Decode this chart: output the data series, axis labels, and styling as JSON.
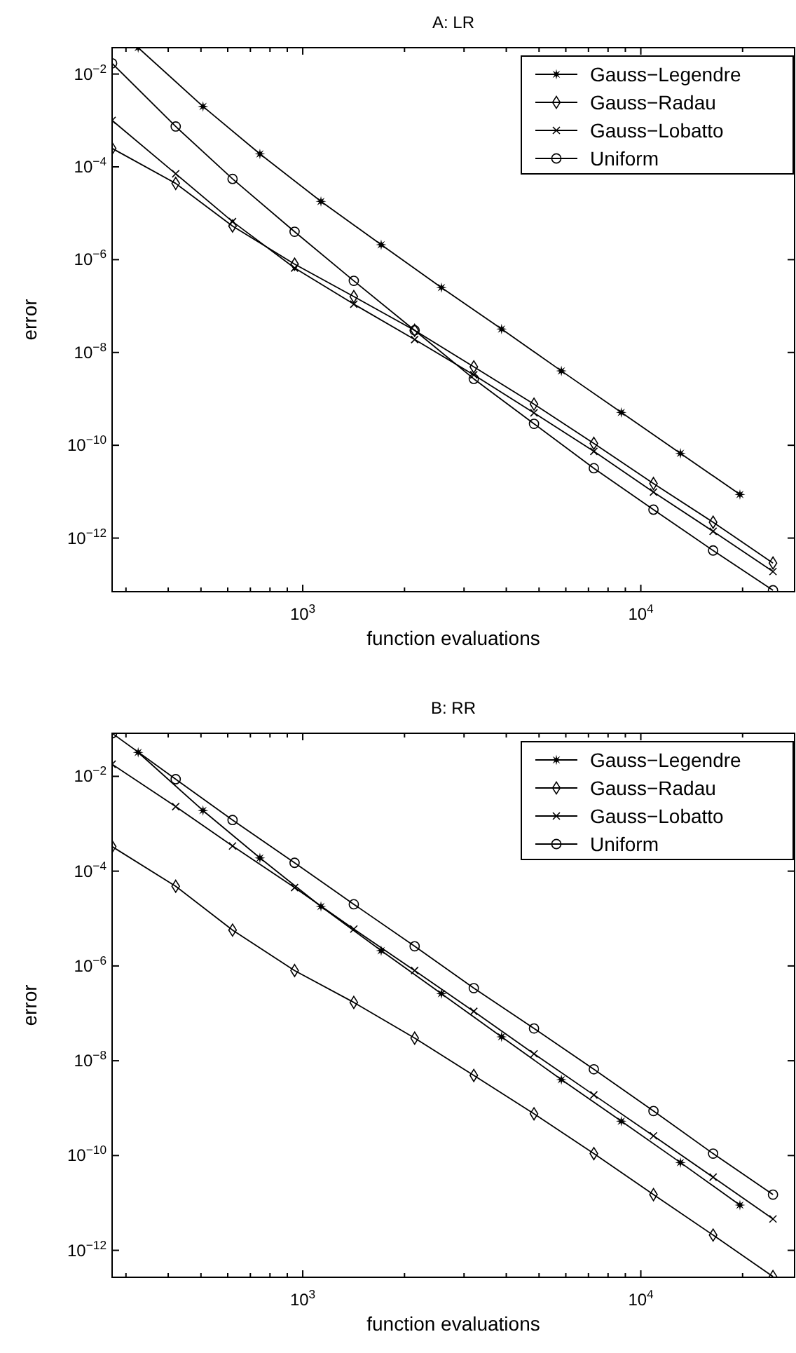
{
  "chart_data": [
    {
      "type": "line",
      "title": "A: LR",
      "xlabel": "function evaluations",
      "ylabel": "error",
      "log": "xy",
      "grid": false,
      "legend": "top right",
      "xlim": [
        273,
        28500
      ],
      "ylim": [
        7e-14,
        0.037
      ],
      "xticks": [
        {
          "value": 300,
          "label": null
        },
        {
          "value": 400,
          "label": null
        },
        {
          "value": 500,
          "label": null
        },
        {
          "value": 600,
          "label": null
        },
        {
          "value": 700,
          "label": null
        },
        {
          "value": 800,
          "label": null
        },
        {
          "value": 900,
          "label": null
        },
        {
          "value": 1000,
          "label": "10$^{3}$"
        },
        {
          "value": 2000,
          "label": null
        },
        {
          "value": 3000,
          "label": null
        },
        {
          "value": 4000,
          "label": null
        },
        {
          "value": 5000,
          "label": null
        },
        {
          "value": 6000,
          "label": null
        },
        {
          "value": 7000,
          "label": null
        },
        {
          "value": 8000,
          "label": null
        },
        {
          "value": 9000,
          "label": null
        },
        {
          "value": 10000,
          "label": "10$^{4}$"
        },
        {
          "value": 20000,
          "label": null
        }
      ],
      "yticks": [
        {
          "value": 0.01,
          "label": "10$^{−2}$"
        },
        {
          "value": 0.0001,
          "label": "10$^{−4}$"
        },
        {
          "value": 1e-06,
          "label": "10$^{−6}$"
        },
        {
          "value": 1e-08,
          "label": "10$^{−8}$"
        },
        {
          "value": 1e-10,
          "label": "10$^{−10}$"
        },
        {
          "value": 1e-12,
          "label": "10$^{−12}$"
        }
      ],
      "x": [
        273,
        421,
        620,
        946,
        1416,
        2143,
        3206,
        4831,
        7262,
        10900,
        16360,
        24600
      ],
      "series": [
        {
          "name": "Gauss−Legendre",
          "color": "#000000",
          "marker": "star",
          "x": [
            326,
            507,
            747,
            1132,
            1706,
            2572,
            3873,
            5821,
            8753,
            13100,
            19640
          ],
          "values": [
            0.037,
            0.002,
            0.00019,
            1.8e-05,
            2.1e-06,
            2.5e-07,
            3.2e-08,
            4e-09,
            5.1e-10,
            6.7e-11,
            8.7e-12
          ]
        },
        {
          "name": "Gauss−Radau",
          "color": "#000000",
          "marker": "diamond",
          "values": [
            0.00025,
            4.4e-05,
            5.3e-06,
            8e-07,
            1.6e-07,
            3e-08,
            4.9e-09,
            7.7e-10,
            1.1e-10,
            1.5e-11,
            2.2e-12,
            2.9e-13
          ]
        },
        {
          "name": "Gauss−Lobatto",
          "color": "#000000",
          "marker": "cross",
          "values": [
            0.001,
            7.1e-05,
            6.6e-06,
            6.6e-07,
            1.1e-07,
            1.9e-08,
            3.3e-09,
            5e-10,
            7.4e-11,
            9.8e-12,
            1.4e-12,
            1.9e-13
          ]
        },
        {
          "name": "Uniform",
          "color": "#000000",
          "marker": "circle",
          "values": [
            0.017,
            0.00074,
            5.5e-05,
            4e-06,
            3.5e-07,
            3e-08,
            2.7e-09,
            2.9e-10,
            3.2e-11,
            4.1e-12,
            5.4e-13,
            7.5e-14
          ]
        }
      ]
    },
    {
      "type": "line",
      "title": "B: RR",
      "xlabel": "function evaluations",
      "ylabel": "error",
      "log": "xy",
      "grid": false,
      "legend": "top right",
      "xlim": [
        273,
        28500
      ],
      "ylim": [
        2.7e-13,
        0.081
      ],
      "xticks": [
        {
          "value": 300,
          "label": null
        },
        {
          "value": 400,
          "label": null
        },
        {
          "value": 500,
          "label": null
        },
        {
          "value": 600,
          "label": null
        },
        {
          "value": 700,
          "label": null
        },
        {
          "value": 800,
          "label": null
        },
        {
          "value": 900,
          "label": null
        },
        {
          "value": 1000,
          "label": "10$^{3}$"
        },
        {
          "value": 2000,
          "label": null
        },
        {
          "value": 3000,
          "label": null
        },
        {
          "value": 4000,
          "label": null
        },
        {
          "value": 5000,
          "label": null
        },
        {
          "value": 6000,
          "label": null
        },
        {
          "value": 7000,
          "label": null
        },
        {
          "value": 8000,
          "label": null
        },
        {
          "value": 9000,
          "label": null
        },
        {
          "value": 10000,
          "label": "10$^{4}$"
        },
        {
          "value": 20000,
          "label": null
        }
      ],
      "yticks": [
        {
          "value": 0.01,
          "label": "10$^{−2}$"
        },
        {
          "value": 0.0001,
          "label": "10$^{−4}$"
        },
        {
          "value": 1e-06,
          "label": "10$^{−6}$"
        },
        {
          "value": 1e-08,
          "label": "10$^{−8}$"
        },
        {
          "value": 1e-10,
          "label": "10$^{−10}$"
        },
        {
          "value": 1e-12,
          "label": "10$^{−12}$"
        }
      ],
      "x": [
        273,
        421,
        620,
        946,
        1416,
        2143,
        3206,
        4831,
        7262,
        10900,
        16360,
        24600
      ],
      "series": [
        {
          "name": "Gauss−Legendre",
          "color": "#000000",
          "marker": "star",
          "x": [
            326,
            507,
            747,
            1132,
            1706,
            2572,
            3873,
            5821,
            8753,
            13100,
            19640
          ],
          "values": [
            0.032,
            0.0019,
            0.00019,
            1.8e-05,
            2.1e-06,
            2.6e-07,
            3.2e-08,
            4e-09,
            5.3e-10,
            7.1e-11,
            9e-12
          ]
        },
        {
          "name": "Gauss−Radau",
          "color": "#000000",
          "marker": "diamond",
          "values": [
            0.00033,
            4.8e-05,
            5.7e-06,
            8e-07,
            1.7e-07,
            3e-08,
            4.9e-09,
            7.6e-10,
            1.1e-10,
            1.5e-11,
            2.1e-12,
            2.8e-13
          ]
        },
        {
          "name": "Gauss−Lobatto",
          "color": "#000000",
          "marker": "cross",
          "values": [
            0.018,
            0.0023,
            0.00034,
            4.5e-05,
            6e-06,
            8e-07,
            1.1e-07,
            1.4e-08,
            1.9e-09,
            2.6e-10,
            3.5e-11,
            4.6e-12
          ]
        },
        {
          "name": "Uniform",
          "color": "#000000",
          "marker": "circle",
          "values": [
            0.081,
            0.0087,
            0.0012,
            0.00015,
            2e-05,
            2.6e-06,
            3.4e-07,
            4.8e-08,
            6.6e-09,
            8.7e-10,
            1.1e-10,
            1.5e-11
          ]
        }
      ]
    }
  ]
}
